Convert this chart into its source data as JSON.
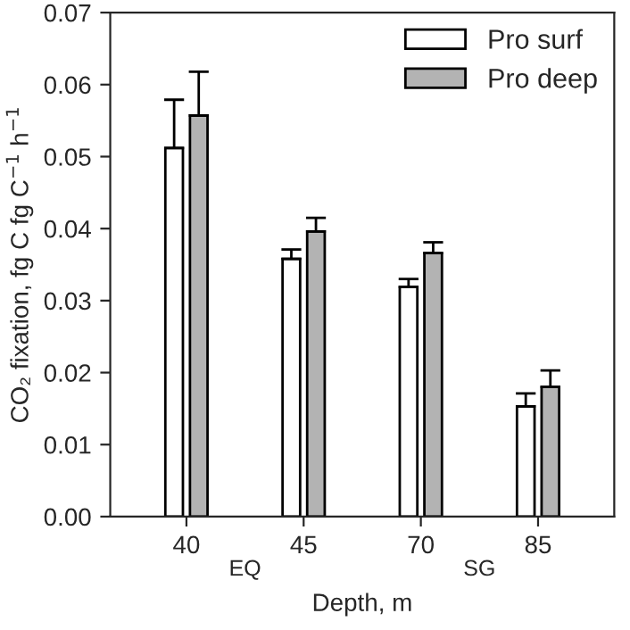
{
  "chart_data": {
    "type": "bar",
    "xlabel": "Depth, m",
    "ylabel": "CO₂ fixation, fg C fg C$^{−1}$ h$^{−1}$",
    "categories": [
      "40",
      "45",
      "70",
      "85"
    ],
    "series": [
      {
        "name": "Pro surf",
        "color": "#ffffff",
        "values": [
          0.0512,
          0.0358,
          0.0319,
          0.0153
        ],
        "errors": [
          [
            0.0512,
            0.0579
          ],
          [
            0.0358,
            0.0371
          ],
          [
            0.0319,
            0.033
          ],
          [
            0.0153,
            0.0171
          ]
        ]
      },
      {
        "name": "Pro deep",
        "color": "#b3b3b3",
        "values": [
          0.0557,
          0.0396,
          0.0366,
          0.018
        ],
        "errors": [
          [
            0.0557,
            0.0618
          ],
          [
            0.0396,
            0.0415
          ],
          [
            0.0366,
            0.0381
          ],
          [
            0.018,
            0.0203
          ]
        ]
      }
    ],
    "annotations": [
      "EQ",
      "SG"
    ],
    "ylim": [
      0,
      0.07
    ],
    "yticks": [
      {
        "value": 0,
        "label": "0.00"
      },
      {
        "value": 0.01,
        "label": "0.01"
      },
      {
        "value": 0.02,
        "label": "0.02"
      },
      {
        "value": 0.03,
        "label": "0.03"
      },
      {
        "value": 0.04,
        "label": "0.04"
      },
      {
        "value": 0.05,
        "label": "0.05"
      },
      {
        "value": 0.06,
        "label": "0.06"
      },
      {
        "value": 0.07,
        "label": "0.07"
      }
    ],
    "legend": "top right",
    "grid": false
  }
}
